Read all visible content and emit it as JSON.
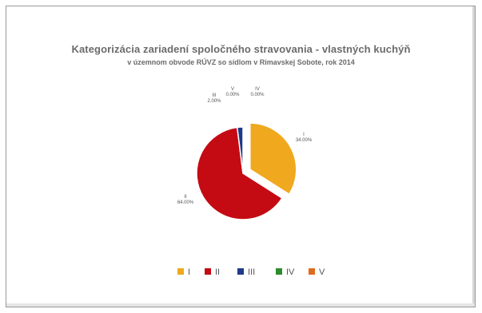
{
  "chart_data": {
    "type": "pie",
    "title": "Kategorizácia zariadení spoločného stravovania - vlastných kuchýň",
    "subtitle": "v územnom obvode RÚVZ so sídlom v Rimavskej  Sobote, rok 2014",
    "slices": [
      {
        "name": "I",
        "value": 34.0,
        "label": "34.00%",
        "color": "#f0a81e",
        "exploded": true
      },
      {
        "name": "II",
        "value": 64.0,
        "label": "64.00%",
        "color": "#c40b13",
        "exploded": false
      },
      {
        "name": "III",
        "value": 2.0,
        "label": "2.00%",
        "color": "#1f3a8a",
        "exploded": false
      },
      {
        "name": "IV",
        "value": 0.0,
        "label": "0.00%",
        "color": "#2e8b2e",
        "exploded": false
      },
      {
        "name": "V",
        "value": 0.0,
        "label": "0.00%",
        "color": "#e06a1e",
        "exploded": false
      }
    ],
    "legend_position": "bottom"
  }
}
